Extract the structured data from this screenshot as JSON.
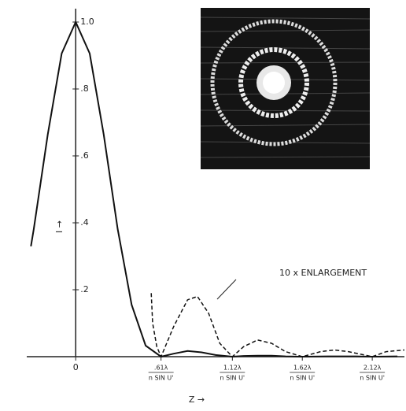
{
  "chart_data": {
    "type": "line",
    "xlim": [
      -0.35,
      2.35
    ],
    "ylim": [
      0,
      1.04
    ],
    "xticks": [
      0,
      {
        "value": 0.61,
        "label": ".61λ",
        "denominator": "n SIN U'"
      },
      {
        "value": 1.12,
        "label": "1.12λ",
        "denominator": "n SIN U'"
      },
      {
        "value": 1.62,
        "label": "1.62λ",
        "denominator": "n SIN U'"
      },
      {
        "value": 2.12,
        "label": "2.12λ",
        "denominator": "n SIN U'"
      }
    ],
    "yticks": [
      {
        "value": 0.2,
        "label": ".2"
      },
      {
        "value": 0.4,
        "label": ".4"
      },
      {
        "value": 0.6,
        "label": ".6"
      },
      {
        "value": 0.8,
        "label": ".8"
      },
      {
        "value": 1.0,
        "label": "1.0"
      }
    ],
    "xlabel": "Z →",
    "ylabel": "I →",
    "annotation": "10 x ENLARGEMENT",
    "series": [
      {
        "color": "#111111",
        "dash": false,
        "x": [
          -0.32,
          -0.3,
          -0.2,
          -0.1,
          0,
          0.1,
          0.2,
          0.3,
          0.4,
          0.5,
          0.61,
          0.7,
          0.8,
          0.9,
          1.0,
          1.12,
          1.2,
          1.3,
          1.4,
          1.5,
          1.62,
          1.8,
          2.0,
          2.12,
          2.3
        ],
        "values": [
          0.33,
          0.381,
          0.664,
          0.906,
          1.0,
          0.906,
          0.664,
          0.381,
          0.155,
          0.033,
          0,
          0.009,
          0.017,
          0.013,
          0.005,
          0,
          0.002,
          0.003,
          0.003,
          0.001,
          0,
          0.001,
          0.001,
          0,
          0.001
        ]
      },
      {
        "color": "#111111",
        "dash": true,
        "x": [
          0.54,
          0.55,
          0.58,
          0.61,
          0.7,
          0.8,
          0.87,
          0.95,
          1.03,
          1.12,
          1.2,
          1.3,
          1.4,
          1.5,
          1.62,
          1.75,
          1.85,
          1.95,
          2.12,
          2.22,
          2.35
        ],
        "values": [
          0.19,
          0.1,
          0.03,
          0,
          0.09,
          0.17,
          0.18,
          0.13,
          0.04,
          0,
          0.03,
          0.05,
          0.04,
          0.015,
          0,
          0.015,
          0.02,
          0.015,
          0,
          0.015,
          0.02
        ]
      }
    ]
  }
}
